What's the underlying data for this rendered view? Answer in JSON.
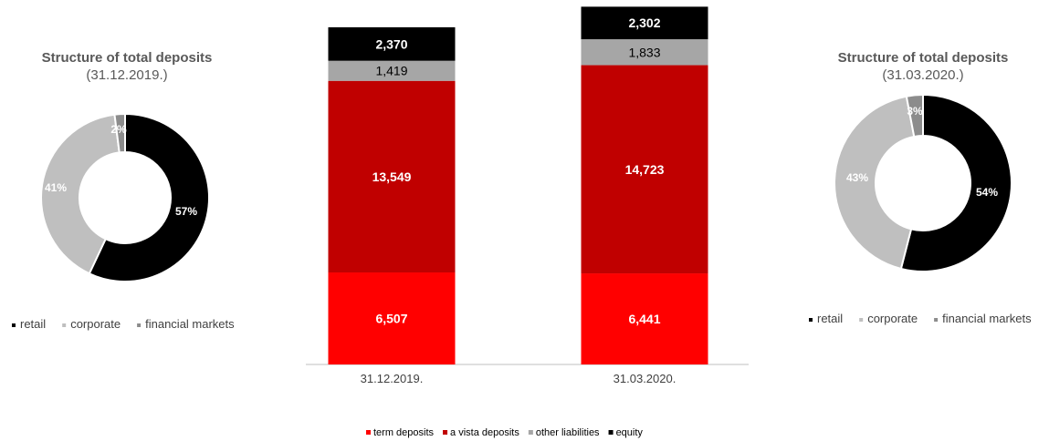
{
  "chart_data": [
    {
      "type": "pie",
      "title": "Structure of total deposits",
      "subtitle": "(31.12.2019.)",
      "categories": [
        "retail",
        "corporate",
        "financial markets"
      ],
      "values": [
        57,
        41,
        2
      ],
      "value_labels": [
        "57%",
        "41%",
        "2%"
      ],
      "colors": [
        "#000000",
        "#bfbfbf",
        "#8c8c8c"
      ],
      "legend_position": "bottom"
    },
    {
      "type": "bar",
      "stacked": true,
      "categories": [
        "31.12.2019.",
        "31.03.2020."
      ],
      "series": [
        {
          "name": "term deposits",
          "color": "#ff0000",
          "values": [
            6507,
            6441
          ],
          "labels": [
            "6,507",
            "6,441"
          ]
        },
        {
          "name": "a vista deposits",
          "color": "#c00000",
          "values": [
            13549,
            14723
          ],
          "labels": [
            "13,549",
            "14,723"
          ]
        },
        {
          "name": "other liabilities",
          "color": "#a6a6a6",
          "values": [
            1419,
            1833
          ],
          "labels": [
            "1,419",
            "1,833"
          ]
        },
        {
          "name": "equity",
          "color": "#000000",
          "values": [
            2370,
            2302
          ],
          "labels": [
            "2,370",
            "2,302"
          ]
        }
      ],
      "legend_position": "bottom"
    },
    {
      "type": "pie",
      "title": "Structure of total deposits",
      "subtitle": "(31.03.2020.)",
      "categories": [
        "retail",
        "corporate",
        "financial markets"
      ],
      "values": [
        54,
        43,
        3
      ],
      "value_labels": [
        "54%",
        "43%",
        "3%"
      ],
      "colors": [
        "#000000",
        "#bfbfbf",
        "#8c8c8c"
      ],
      "legend_position": "bottom"
    }
  ]
}
